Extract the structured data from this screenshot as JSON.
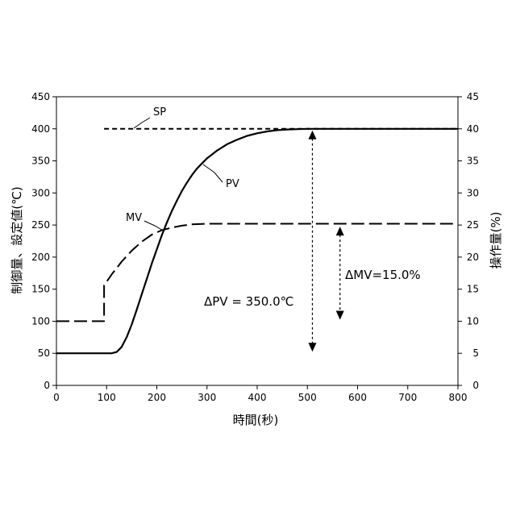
{
  "chart_data": {
    "type": "line",
    "xlabel": "時間(秒)",
    "ylabel_left": "制御量、設定値(℃)",
    "ylabel_right": "操作量(%)",
    "xlim": [
      0,
      800
    ],
    "ylim_left": [
      0,
      450
    ],
    "ylim_right": [
      0,
      45
    ],
    "x_ticks": [
      "0",
      "100",
      "200",
      "300",
      "400",
      "500",
      "600",
      "700",
      "800"
    ],
    "y_left_ticks": [
      "0",
      "50",
      "100",
      "150",
      "200",
      "250",
      "300",
      "350",
      "400",
      "450"
    ],
    "y_right_ticks": [
      "0",
      "5",
      "10",
      "15",
      "20",
      "25",
      "30",
      "35",
      "40",
      "45"
    ],
    "grid": false,
    "series": [
      {
        "name": "SP",
        "axis": "left",
        "style": "dashed",
        "x": [
          0,
          95,
          95,
          800
        ],
        "y": [
          null,
          null,
          400,
          400
        ]
      },
      {
        "name": "PV",
        "axis": "left",
        "style": "solid",
        "x": [
          0,
          95,
          110,
          120,
          130,
          140,
          150,
          160,
          170,
          180,
          190,
          200,
          210,
          220,
          230,
          240,
          250,
          260,
          270,
          280,
          290,
          300,
          320,
          340,
          360,
          380,
          400,
          420,
          440,
          460,
          480,
          500,
          520,
          540,
          560,
          600,
          700,
          800
        ],
        "y": [
          50,
          50,
          50,
          52,
          60,
          75,
          95,
          118,
          142,
          166,
          190,
          212,
          234,
          254,
          272,
          288,
          303,
          316,
          328,
          338,
          346,
          354,
          366,
          376,
          383,
          389,
          393,
          396,
          398,
          399,
          399.5,
          400,
          400,
          400,
          400,
          400,
          400,
          400
        ]
      },
      {
        "name": "MV",
        "axis": "right",
        "style": "long-dash",
        "x": [
          0,
          95,
          95,
          110,
          130,
          150,
          170,
          190,
          210,
          230,
          250,
          270,
          300,
          350,
          400,
          500,
          600,
          700,
          800
        ],
        "y": [
          10,
          10,
          15.6,
          17.3,
          19.3,
          21.0,
          22.4,
          23.5,
          24.2,
          24.6,
          24.9,
          25.1,
          25.2,
          25.2,
          25.2,
          25.2,
          25.2,
          25.2,
          25.2
        ]
      }
    ],
    "annotations": [
      {
        "text": "ΔPV = 350.0℃",
        "axis": "left",
        "arrow_x": 510,
        "arrow_from": 50,
        "arrow_to": 400
      },
      {
        "text": "ΔMV=15.0%",
        "axis": "right",
        "arrow_x": 565,
        "arrow_from": 10,
        "arrow_to": 25
      }
    ]
  }
}
